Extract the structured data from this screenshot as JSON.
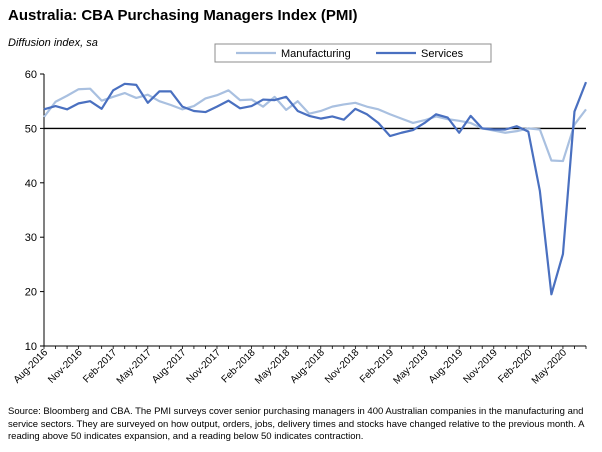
{
  "chart_data": {
    "type": "line",
    "title": "Australia: CBA Purchasing Managers Index (PMI)",
    "subtitle": "Diffusion index, sa",
    "xlabel": "",
    "ylabel": "",
    "ylim": [
      10,
      60
    ],
    "yticks": [
      10,
      20,
      30,
      40,
      50,
      60
    ],
    "reference_line": 50,
    "grid": false,
    "legend_position": "top-right",
    "x": [
      "Aug-2016",
      "Sep-2016",
      "Oct-2016",
      "Nov-2016",
      "Dec-2016",
      "Jan-2017",
      "Feb-2017",
      "Mar-2017",
      "Apr-2017",
      "May-2017",
      "Jun-2017",
      "Jul-2017",
      "Aug-2017",
      "Sep-2017",
      "Oct-2017",
      "Nov-2017",
      "Dec-2017",
      "Jan-2018",
      "Feb-2018",
      "Mar-2018",
      "Apr-2018",
      "May-2018",
      "Jun-2018",
      "Jul-2018",
      "Aug-2018",
      "Sep-2018",
      "Oct-2018",
      "Nov-2018",
      "Dec-2018",
      "Jan-2019",
      "Feb-2019",
      "Mar-2019",
      "Apr-2019",
      "May-2019",
      "Jun-2019",
      "Jul-2019",
      "Aug-2019",
      "Sep-2019",
      "Oct-2019",
      "Nov-2019",
      "Dec-2019",
      "Jan-2020",
      "Feb-2020",
      "Mar-2020",
      "Apr-2020",
      "May-2020",
      "Jun-2020",
      "Jul-2020"
    ],
    "x_tick_labels": [
      "Aug-2016",
      "Nov-2016",
      "Feb-2017",
      "May-2017",
      "Aug-2017",
      "Nov-2017",
      "Feb-2018",
      "May-2018",
      "Aug-2018",
      "Nov-2018",
      "Feb-2019",
      "May-2019",
      "Aug-2019",
      "Nov-2019",
      "Feb-2020",
      "May-2020"
    ],
    "series": [
      {
        "name": "Manufacturing",
        "color": "#a9c0e0",
        "values": [
          52.1,
          54.9,
          56.0,
          57.2,
          57.3,
          55.1,
          55.8,
          56.5,
          55.6,
          56.2,
          55.0,
          54.3,
          53.5,
          54.1,
          55.5,
          56.1,
          57.0,
          55.2,
          55.3,
          54.0,
          55.8,
          53.4,
          55.0,
          52.7,
          53.2,
          54.0,
          54.4,
          54.7,
          54.0,
          53.5,
          52.6,
          51.8,
          51.0,
          51.5,
          52.2,
          51.7,
          51.4,
          51.0,
          50.0,
          49.6,
          49.2,
          49.5,
          50.0,
          49.8,
          44.1,
          44.0,
          50.7,
          53.5
        ]
      },
      {
        "name": "Services",
        "color": "#4a70c0",
        "values": [
          53.5,
          54.1,
          53.5,
          54.6,
          55.0,
          53.6,
          57.0,
          58.2,
          58.0,
          54.7,
          56.8,
          56.8,
          54.0,
          53.2,
          53.0,
          54.0,
          55.1,
          53.7,
          54.1,
          55.3,
          55.2,
          55.8,
          53.2,
          52.3,
          51.8,
          52.2,
          51.6,
          53.6,
          52.6,
          51.0,
          48.6,
          49.2,
          49.7,
          51.0,
          52.6,
          52.0,
          49.2,
          52.3,
          50.0,
          49.8,
          49.8,
          50.4,
          49.4,
          38.5,
          19.5,
          26.9,
          53.1,
          58.5
        ]
      }
    ]
  },
  "source_note": "Source: Bloomberg and CBA.  The PMI surveys cover senior purchasing managers in 400 Australian companies in the manufacturing and service sectors.  They are surveyed on how output, orders, jobs, delivery times and stocks have changed relative to the previous month. A reading above 50 indicates expansion, and a reading below 50 indicates contraction."
}
